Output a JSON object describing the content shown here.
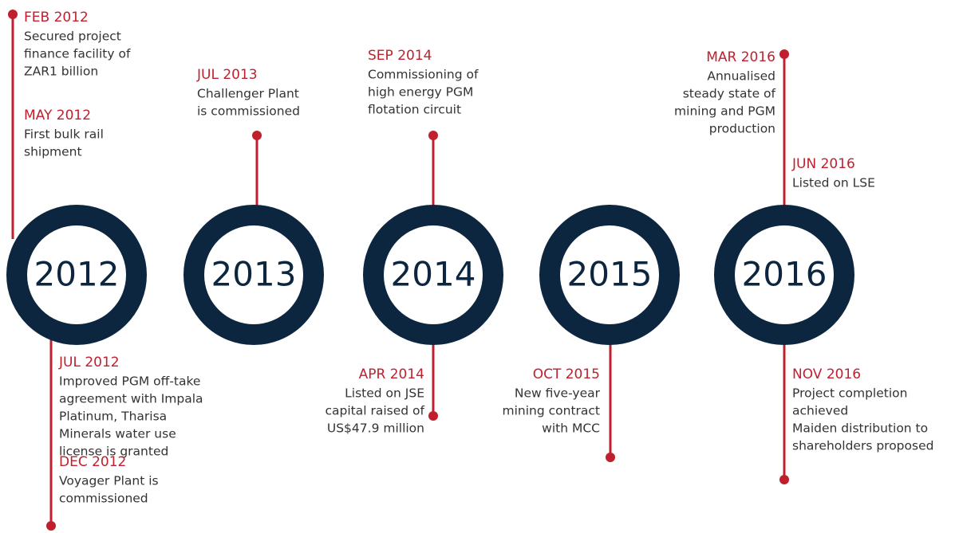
{
  "years": [
    "2012",
    "2013",
    "2014",
    "2015",
    "2016"
  ],
  "events": [
    {
      "date": "FEB 2012",
      "lines": [
        "Secured project",
        "finance facility of",
        "ZAR1 billion"
      ]
    },
    {
      "date": "MAY 2012",
      "lines": [
        "First bulk rail",
        "shipment"
      ]
    },
    {
      "date": "JUL 2012",
      "lines": [
        "Improved PGM off-take",
        "agreement with Impala",
        "Platinum, Tharisa",
        "Minerals water use",
        "license is granted"
      ]
    },
    {
      "date": "DEC 2012",
      "lines": [
        "Voyager Plant is",
        "commissioned"
      ]
    },
    {
      "date": "JUL 2013",
      "lines": [
        "Challenger Plant",
        "is commissioned"
      ]
    },
    {
      "date": "SEP 2014",
      "lines": [
        "Commissioning of",
        "high energy PGM",
        "flotation circuit"
      ]
    },
    {
      "date": "APR 2014",
      "lines": [
        "Listed on JSE",
        "capital raised of",
        "US$47.9 million"
      ]
    },
    {
      "date": "OCT 2015",
      "lines": [
        "New five-year",
        "mining contract",
        "with MCC"
      ]
    },
    {
      "date": "MAR 2016",
      "lines": [
        "Annualised",
        "steady state of",
        "mining and PGM",
        "production"
      ]
    },
    {
      "date": "JUN 2016",
      "lines": [
        "Listed on LSE"
      ]
    },
    {
      "date": "NOV 2016",
      "lines": [
        "Project completion",
        "achieved",
        "Maiden distribution to",
        "shareholders proposed"
      ]
    }
  ]
}
